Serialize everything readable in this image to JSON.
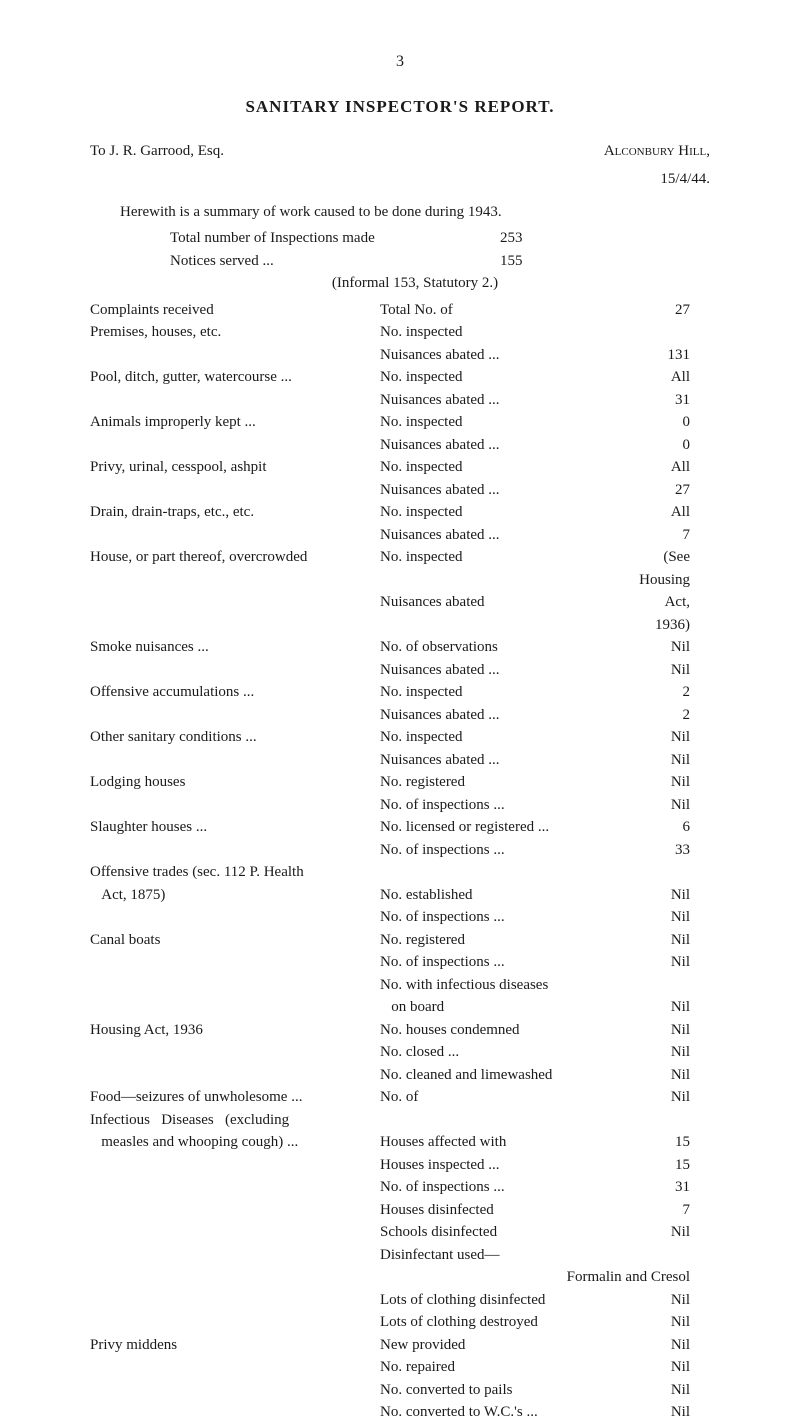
{
  "page_number": "3",
  "title": "SANITARY INSPECTOR'S REPORT.",
  "addressee": "To J. R. Garrood, Esq.",
  "location": "Alconbury Hill,",
  "date": "15/4/44.",
  "intro": "Herewith is a summary of work caused to be done during 1943.",
  "totals": {
    "inspections_label": "Total number of Inspections made",
    "inspections_value": "253",
    "notices_label": "Notices served ...",
    "notices_value": "155",
    "informal": "(Informal 153, Statutory 2.)"
  },
  "rows": [
    {
      "left": "Complaints received",
      "mid": "Total No. of",
      "right": "27"
    },
    {
      "left": "Premises, houses, etc.",
      "mid": "No. inspected",
      "right": ""
    },
    {
      "left": "",
      "mid": "Nuisances abated ...",
      "right": "131"
    },
    {
      "left": "Pool, ditch, gutter, watercourse ...",
      "mid": "No. inspected",
      "right": "All"
    },
    {
      "left": "",
      "mid": "Nuisances abated ...",
      "right": "31"
    },
    {
      "left": "Animals improperly kept ...",
      "mid": "No. inspected",
      "right": "0"
    },
    {
      "left": "",
      "mid": "Nuisances abated ...",
      "right": "0"
    },
    {
      "left": "Privy, urinal, cesspool, ashpit",
      "mid": "No. inspected",
      "right": "All"
    },
    {
      "left": "",
      "mid": "Nuisances abated ...",
      "right": "27"
    },
    {
      "left": "Drain, drain-traps, etc., etc.",
      "mid": "No. inspected",
      "right": "All"
    },
    {
      "left": "",
      "mid": "Nuisances abated ...",
      "right": "7"
    },
    {
      "left": "House, or part thereof, overcrowded",
      "mid": "No. inspected",
      "right": "(See Housing"
    },
    {
      "left": "",
      "mid": "Nuisances abated",
      "right": "Act, 1936)"
    },
    {
      "left": "Smoke nuisances ...",
      "mid": "No. of observations",
      "right": "Nil"
    },
    {
      "left": "",
      "mid": "Nuisances abated ...",
      "right": "Nil"
    },
    {
      "left": "Offensive accumulations ...",
      "mid": "No. inspected",
      "right": "2"
    },
    {
      "left": "",
      "mid": "Nuisances abated ...",
      "right": "2"
    },
    {
      "left": "Other sanitary conditions ...",
      "mid": "No. inspected",
      "right": "Nil"
    },
    {
      "left": "",
      "mid": "Nuisances abated ...",
      "right": "Nil"
    },
    {
      "left": "Lodging houses",
      "mid": "No. registered",
      "right": "Nil"
    },
    {
      "left": "",
      "mid": "No. of inspections ...",
      "right": "Nil"
    },
    {
      "left": "Slaughter houses ...",
      "mid": "No. licensed or registered ...",
      "right": "6"
    },
    {
      "left": "",
      "mid": "No. of inspections ...",
      "right": "33"
    },
    {
      "left": "Offensive trades (sec. 112 P. Health",
      "mid": "",
      "right": ""
    },
    {
      "left": "   Act, 1875)",
      "mid": "No. established",
      "right": "Nil"
    },
    {
      "left": "",
      "mid": "No. of inspections ...",
      "right": "Nil"
    },
    {
      "left": "Canal boats",
      "mid": "No. registered",
      "right": "Nil"
    },
    {
      "left": "",
      "mid": "No. of inspections ...",
      "right": "Nil"
    },
    {
      "left": "",
      "mid": "No. with infectious diseases",
      "right": ""
    },
    {
      "left": "",
      "mid": "   on board",
      "right": "Nil"
    },
    {
      "left": "Housing Act, 1936",
      "mid": "No. houses condemned",
      "right": "Nil"
    },
    {
      "left": "",
      "mid": "No. closed ...",
      "right": "Nil"
    },
    {
      "left": "",
      "mid": "No. cleaned and limewashed",
      "right": "Nil"
    },
    {
      "left": "Food—seizures of unwholesome ...",
      "mid": "No. of",
      "right": "Nil"
    },
    {
      "left": "Infectious   Diseases   (excluding",
      "mid": "",
      "right": ""
    },
    {
      "left": "   measles and whooping cough) ...",
      "mid": "Houses affected with",
      "right": "15"
    },
    {
      "left": "",
      "mid": "Houses inspected ...",
      "right": "15"
    },
    {
      "left": "",
      "mid": "No. of inspections ...",
      "right": "31"
    },
    {
      "left": "",
      "mid": "Houses disinfected",
      "right": "7"
    },
    {
      "left": "",
      "mid": "Schools disinfected",
      "right": "Nil"
    },
    {
      "left": "",
      "mid": "Disinfectant used—",
      "right": ""
    },
    {
      "left": "",
      "mid": "      Formalin and Cresol",
      "right": "",
      "wide": true
    },
    {
      "left": "",
      "mid": "Lots of clothing disinfected",
      "right": "Nil"
    },
    {
      "left": "",
      "mid": "Lots of clothing destroyed",
      "right": "Nil"
    },
    {
      "left": "Privy middens",
      "mid": "New provided",
      "right": "Nil"
    },
    {
      "left": "",
      "mid": "No. repaired",
      "right": "Nil"
    },
    {
      "left": "",
      "mid": "No. converted to pails",
      "right": "Nil"
    },
    {
      "left": "",
      "mid": "No. converted to W.C.'s ...",
      "right": "Nil"
    }
  ]
}
